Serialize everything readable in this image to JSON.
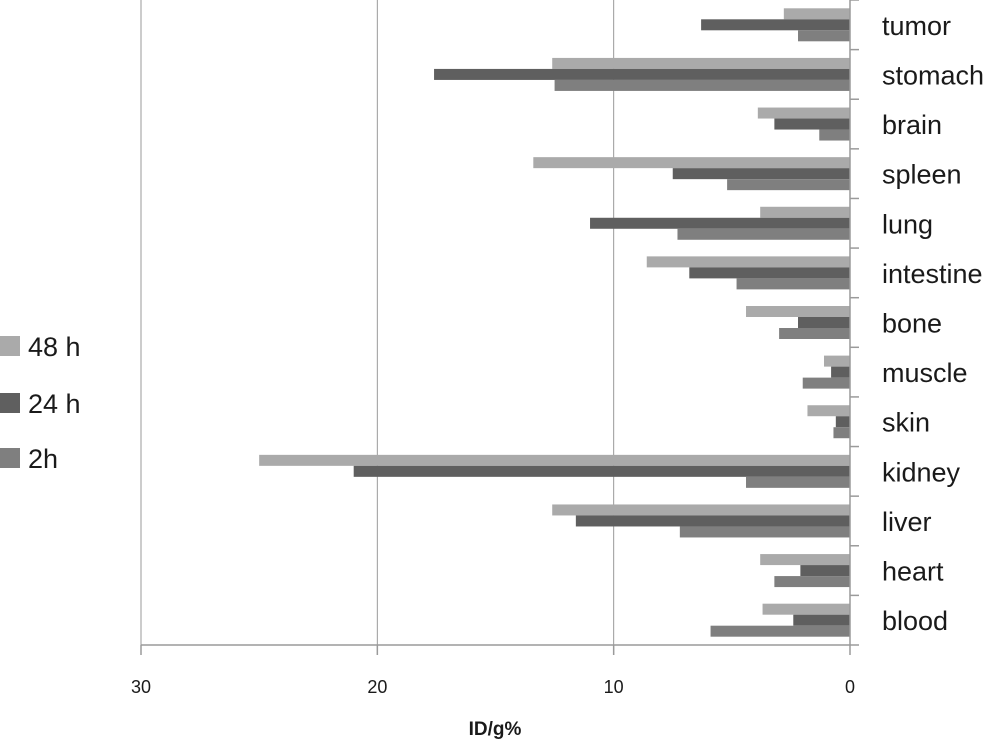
{
  "chart_data": {
    "type": "bar",
    "orientation": "horizontal",
    "x_reversed": true,
    "xlabel": "ID/g%",
    "xlim": [
      0,
      30
    ],
    "xticks": [
      "30",
      "20",
      "10",
      "0"
    ],
    "gridlines": "vertical",
    "legend_position": "left",
    "categories": [
      "tumor",
      "stomach",
      "brain",
      "spleen",
      "lung",
      "intestine",
      "bone",
      "muscle",
      "skin",
      "kidney",
      "liver",
      "heart",
      "blood"
    ],
    "series": [
      {
        "name": "48 h",
        "color": "#aaaaaa",
        "values": [
          2.8,
          12.6,
          3.9,
          13.4,
          3.8,
          8.6,
          4.4,
          1.1,
          1.8,
          25.0,
          12.6,
          3.8,
          3.7
        ]
      },
      {
        "name": "24 h",
        "color": "#5f5f5f",
        "values": [
          6.3,
          17.6,
          3.2,
          7.5,
          11.0,
          6.8,
          2.2,
          0.8,
          0.6,
          21.0,
          11.6,
          2.1,
          2.4
        ]
      },
      {
        "name": "2h",
        "color": "#7f7f7f",
        "values": [
          2.2,
          12.5,
          1.3,
          5.2,
          7.3,
          4.8,
          3.0,
          2.0,
          0.7,
          4.4,
          7.2,
          3.2,
          5.9
        ]
      }
    ]
  }
}
